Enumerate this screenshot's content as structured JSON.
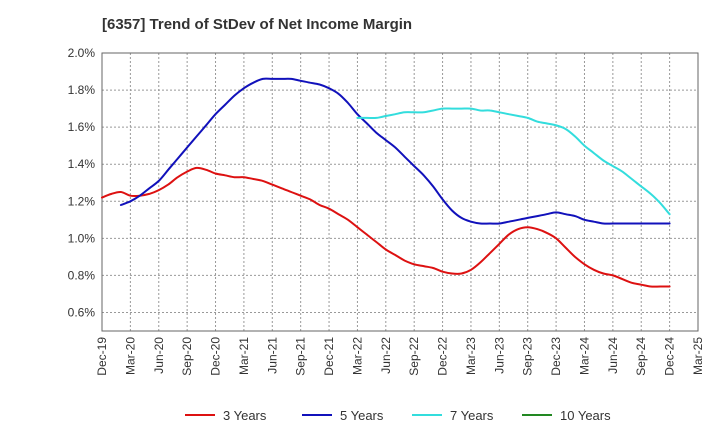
{
  "chart_data": {
    "type": "line",
    "title": "[6357]  Trend of StDev of Net Income Margin",
    "xlabel": "",
    "ylabel": "",
    "x_tick_labels": [
      "Dec-19",
      "Mar-20",
      "Jun-20",
      "Sep-20",
      "Dec-20",
      "Mar-21",
      "Jun-21",
      "Sep-21",
      "Dec-21",
      "Mar-22",
      "Jun-22",
      "Sep-22",
      "Dec-22",
      "Mar-23",
      "Jun-23",
      "Sep-23",
      "Dec-23",
      "Mar-24",
      "Jun-24",
      "Sep-24",
      "Dec-24",
      "Mar-25"
    ],
    "y_tick_labels": [
      "0.6%",
      "0.8%",
      "1.0%",
      "1.2%",
      "1.4%",
      "1.6%",
      "1.8%",
      "2.0%"
    ],
    "ylim": [
      0.5,
      2.0
    ],
    "y_ticks": [
      0.6,
      0.8,
      1.0,
      1.2,
      1.4,
      1.6,
      1.8,
      2.0
    ],
    "y_unit": "%",
    "grid": true,
    "legend_position": "bottom",
    "series": [
      {
        "name": "3 Years",
        "color": "#dd1111",
        "points": [
          [
            "Dec-19",
            1.22
          ],
          [
            "Jan-20",
            1.24
          ],
          [
            "Feb-20",
            1.25
          ],
          [
            "Mar-20",
            1.23
          ],
          [
            "Apr-20",
            1.23
          ],
          [
            "May-20",
            1.24
          ],
          [
            "Jun-20",
            1.26
          ],
          [
            "Jul-20",
            1.29
          ],
          [
            "Aug-20",
            1.33
          ],
          [
            "Sep-20",
            1.36
          ],
          [
            "Oct-20",
            1.38
          ],
          [
            "Nov-20",
            1.37
          ],
          [
            "Dec-20",
            1.35
          ],
          [
            "Jan-21",
            1.34
          ],
          [
            "Feb-21",
            1.33
          ],
          [
            "Mar-21",
            1.33
          ],
          [
            "Apr-21",
            1.32
          ],
          [
            "May-21",
            1.31
          ],
          [
            "Jun-21",
            1.29
          ],
          [
            "Jul-21",
            1.27
          ],
          [
            "Aug-21",
            1.25
          ],
          [
            "Sep-21",
            1.23
          ],
          [
            "Oct-21",
            1.21
          ],
          [
            "Nov-21",
            1.18
          ],
          [
            "Dec-21",
            1.16
          ],
          [
            "Jan-22",
            1.13
          ],
          [
            "Feb-22",
            1.1
          ],
          [
            "Mar-22",
            1.06
          ],
          [
            "Apr-22",
            1.02
          ],
          [
            "May-22",
            0.98
          ],
          [
            "Jun-22",
            0.94
          ],
          [
            "Jul-22",
            0.91
          ],
          [
            "Aug-22",
            0.88
          ],
          [
            "Sep-22",
            0.86
          ],
          [
            "Oct-22",
            0.85
          ],
          [
            "Nov-22",
            0.84
          ],
          [
            "Dec-22",
            0.82
          ],
          [
            "Jan-23",
            0.81
          ],
          [
            "Feb-23",
            0.81
          ],
          [
            "Mar-23",
            0.83
          ],
          [
            "Apr-23",
            0.87
          ],
          [
            "May-23",
            0.92
          ],
          [
            "Jun-23",
            0.97
          ],
          [
            "Jul-23",
            1.02
          ],
          [
            "Aug-23",
            1.05
          ],
          [
            "Sep-23",
            1.06
          ],
          [
            "Oct-23",
            1.05
          ],
          [
            "Nov-23",
            1.03
          ],
          [
            "Dec-23",
            1.0
          ],
          [
            "Jan-24",
            0.95
          ],
          [
            "Feb-24",
            0.9
          ],
          [
            "Mar-24",
            0.86
          ],
          [
            "Apr-24",
            0.83
          ],
          [
            "May-24",
            0.81
          ],
          [
            "Jun-24",
            0.8
          ],
          [
            "Jul-24",
            0.78
          ],
          [
            "Aug-24",
            0.76
          ],
          [
            "Sep-24",
            0.75
          ],
          [
            "Oct-24",
            0.74
          ],
          [
            "Nov-24",
            0.74
          ],
          [
            "Dec-24",
            0.74
          ]
        ]
      },
      {
        "name": "5 Years",
        "color": "#1111bb",
        "points": [
          [
            "Feb-20",
            1.18
          ],
          [
            "Mar-20",
            1.2
          ],
          [
            "Apr-20",
            1.23
          ],
          [
            "May-20",
            1.27
          ],
          [
            "Jun-20",
            1.31
          ],
          [
            "Jul-20",
            1.37
          ],
          [
            "Aug-20",
            1.43
          ],
          [
            "Sep-20",
            1.49
          ],
          [
            "Oct-20",
            1.55
          ],
          [
            "Nov-20",
            1.61
          ],
          [
            "Dec-20",
            1.67
          ],
          [
            "Jan-21",
            1.72
          ],
          [
            "Feb-21",
            1.77
          ],
          [
            "Mar-21",
            1.81
          ],
          [
            "Apr-21",
            1.84
          ],
          [
            "May-21",
            1.86
          ],
          [
            "Jun-21",
            1.86
          ],
          [
            "Jul-21",
            1.86
          ],
          [
            "Aug-21",
            1.86
          ],
          [
            "Sep-21",
            1.85
          ],
          [
            "Oct-21",
            1.84
          ],
          [
            "Nov-21",
            1.83
          ],
          [
            "Dec-21",
            1.81
          ],
          [
            "Jan-22",
            1.78
          ],
          [
            "Feb-22",
            1.73
          ],
          [
            "Mar-22",
            1.67
          ],
          [
            "Apr-22",
            1.62
          ],
          [
            "May-22",
            1.57
          ],
          [
            "Jun-22",
            1.53
          ],
          [
            "Jul-22",
            1.49
          ],
          [
            "Aug-22",
            1.44
          ],
          [
            "Sep-22",
            1.39
          ],
          [
            "Oct-22",
            1.34
          ],
          [
            "Nov-22",
            1.28
          ],
          [
            "Dec-22",
            1.21
          ],
          [
            "Jan-23",
            1.15
          ],
          [
            "Feb-23",
            1.11
          ],
          [
            "Mar-23",
            1.09
          ],
          [
            "Apr-23",
            1.08
          ],
          [
            "May-23",
            1.08
          ],
          [
            "Jun-23",
            1.08
          ],
          [
            "Jul-23",
            1.09
          ],
          [
            "Aug-23",
            1.1
          ],
          [
            "Sep-23",
            1.11
          ],
          [
            "Oct-23",
            1.12
          ],
          [
            "Nov-23",
            1.13
          ],
          [
            "Dec-23",
            1.14
          ],
          [
            "Jan-24",
            1.13
          ],
          [
            "Feb-24",
            1.12
          ],
          [
            "Mar-24",
            1.1
          ],
          [
            "Apr-24",
            1.09
          ],
          [
            "May-24",
            1.08
          ],
          [
            "Jun-24",
            1.08
          ],
          [
            "Jul-24",
            1.08
          ],
          [
            "Aug-24",
            1.08
          ],
          [
            "Sep-24",
            1.08
          ],
          [
            "Oct-24",
            1.08
          ],
          [
            "Nov-24",
            1.08
          ],
          [
            "Dec-24",
            1.08
          ]
        ]
      },
      {
        "name": "7 Years",
        "color": "#33dddd",
        "points": [
          [
            "Mar-22",
            1.65
          ],
          [
            "Apr-22",
            1.65
          ],
          [
            "May-22",
            1.65
          ],
          [
            "Jun-22",
            1.66
          ],
          [
            "Jul-22",
            1.67
          ],
          [
            "Aug-22",
            1.68
          ],
          [
            "Sep-22",
            1.68
          ],
          [
            "Oct-22",
            1.68
          ],
          [
            "Nov-22",
            1.69
          ],
          [
            "Dec-22",
            1.7
          ],
          [
            "Jan-23",
            1.7
          ],
          [
            "Feb-23",
            1.7
          ],
          [
            "Mar-23",
            1.7
          ],
          [
            "Apr-23",
            1.69
          ],
          [
            "May-23",
            1.69
          ],
          [
            "Jun-23",
            1.68
          ],
          [
            "Jul-23",
            1.67
          ],
          [
            "Aug-23",
            1.66
          ],
          [
            "Sep-23",
            1.65
          ],
          [
            "Oct-23",
            1.63
          ],
          [
            "Nov-23",
            1.62
          ],
          [
            "Dec-23",
            1.61
          ],
          [
            "Jan-24",
            1.59
          ],
          [
            "Feb-24",
            1.55
          ],
          [
            "Mar-24",
            1.5
          ],
          [
            "Apr-24",
            1.46
          ],
          [
            "May-24",
            1.42
          ],
          [
            "Jun-24",
            1.39
          ],
          [
            "Jul-24",
            1.36
          ],
          [
            "Aug-24",
            1.32
          ],
          [
            "Sep-24",
            1.28
          ],
          [
            "Oct-24",
            1.24
          ],
          [
            "Nov-24",
            1.19
          ],
          [
            "Dec-24",
            1.13
          ]
        ]
      },
      {
        "name": "10 Years",
        "color": "#228822",
        "points": []
      }
    ]
  }
}
